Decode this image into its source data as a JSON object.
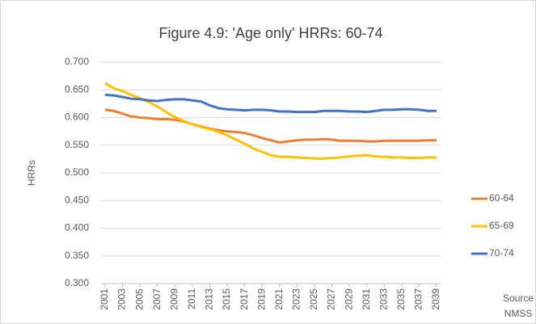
{
  "chart_data": {
    "type": "line",
    "title": "Figure 4.9: 'Age only' HRRs: 60-74",
    "y_label": "HRRs",
    "source_note": [
      "Source",
      "NMSS"
    ],
    "x": [
      2001,
      2002,
      2003,
      2004,
      2005,
      2006,
      2007,
      2008,
      2009,
      2010,
      2011,
      2012,
      2013,
      2014,
      2015,
      2016,
      2017,
      2018,
      2019,
      2020,
      2021,
      2022,
      2023,
      2024,
      2025,
      2026,
      2027,
      2028,
      2029,
      2030,
      2031,
      2032,
      2033,
      2034,
      2035,
      2036,
      2037,
      2038,
      2039
    ],
    "xlim": [
      2000.5,
      2039.5
    ],
    "xticks": [
      2001,
      2003,
      2005,
      2007,
      2009,
      2011,
      2013,
      2015,
      2017,
      2019,
      2021,
      2023,
      2025,
      2027,
      2029,
      2031,
      2033,
      2035,
      2037,
      2039
    ],
    "ylim": [
      0.3,
      0.7
    ],
    "yticks": [
      {
        "value": 0.3,
        "label": "0.300"
      },
      {
        "value": 0.35,
        "label": "0.350"
      },
      {
        "value": 0.4,
        "label": "0.400"
      },
      {
        "value": 0.45,
        "label": "0.450"
      },
      {
        "value": 0.5,
        "label": "0.500"
      },
      {
        "value": 0.55,
        "label": "0.550"
      },
      {
        "value": 0.6,
        "label": "0.600"
      },
      {
        "value": 0.65,
        "label": "0.650"
      },
      {
        "value": 0.7,
        "label": "0.700"
      }
    ],
    "grid": true,
    "legend": "right",
    "series": [
      {
        "name": "60-64",
        "color": "#ed7d31",
        "values": [
          0.614,
          0.612,
          0.607,
          0.602,
          0.6,
          0.599,
          0.597,
          0.597,
          0.596,
          0.593,
          0.588,
          0.584,
          0.58,
          0.577,
          0.575,
          0.574,
          0.572,
          0.568,
          0.563,
          0.559,
          0.555,
          0.557,
          0.559,
          0.56,
          0.56,
          0.561,
          0.56,
          0.558,
          0.558,
          0.558,
          0.557,
          0.557,
          0.558,
          0.558,
          0.558,
          0.558,
          0.558,
          0.559,
          0.559
        ]
      },
      {
        "name": "65-69",
        "color": "#ffc000",
        "values": [
          0.662,
          0.653,
          0.648,
          0.641,
          0.635,
          0.628,
          0.62,
          0.61,
          0.601,
          0.594,
          0.588,
          0.583,
          0.579,
          0.574,
          0.568,
          0.56,
          0.553,
          0.544,
          0.538,
          0.532,
          0.529,
          0.529,
          0.528,
          0.527,
          0.526,
          0.526,
          0.527,
          0.528,
          0.53,
          0.531,
          0.532,
          0.53,
          0.529,
          0.528,
          0.528,
          0.527,
          0.527,
          0.528,
          0.528
        ]
      },
      {
        "name": "70-74",
        "color": "#4472c4",
        "values": [
          0.641,
          0.64,
          0.637,
          0.634,
          0.633,
          0.631,
          0.63,
          0.632,
          0.633,
          0.633,
          0.631,
          0.629,
          0.622,
          0.617,
          0.615,
          0.614,
          0.613,
          0.614,
          0.614,
          0.613,
          0.611,
          0.611,
          0.61,
          0.61,
          0.61,
          0.612,
          0.612,
          0.612,
          0.611,
          0.611,
          0.61,
          0.612,
          0.614,
          0.614,
          0.615,
          0.615,
          0.614,
          0.612,
          0.612
        ]
      }
    ]
  }
}
